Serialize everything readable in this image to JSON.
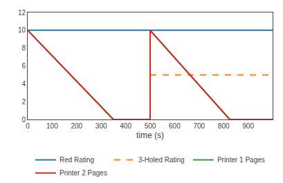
{
  "chart_data": {
    "type": "line",
    "xlabel": "time (s)",
    "xlim": [
      0,
      1000
    ],
    "xticks": [
      0,
      100,
      200,
      300,
      400,
      500,
      600,
      700,
      800,
      900
    ],
    "ylim": [
      0,
      12
    ],
    "yticks": [
      0,
      2,
      4,
      6,
      8,
      10,
      12
    ],
    "grid": false,
    "legend": "bottom",
    "series": [
      {
        "name": "Red Rating",
        "x": [
          0,
          1000
        ],
        "values": [
          10,
          10
        ],
        "line_style": "solid"
      },
      {
        "name": "3-Holed Rating",
        "x": [
          500,
          1000
        ],
        "values": [
          5,
          5
        ],
        "line_style": "dashed"
      },
      {
        "name": "Printer 1 Pages",
        "x": [
          0,
          350,
          500,
          500,
          825,
          1000
        ],
        "values": [
          10,
          0,
          0,
          10,
          0,
          0
        ],
        "line_style": "solid"
      },
      {
        "name": "Printer 2 Pages",
        "x": [
          0,
          350,
          500,
          500,
          825,
          1000
        ],
        "values": [
          10,
          0,
          0,
          10,
          0,
          0
        ],
        "line_style": "solid"
      }
    ]
  }
}
